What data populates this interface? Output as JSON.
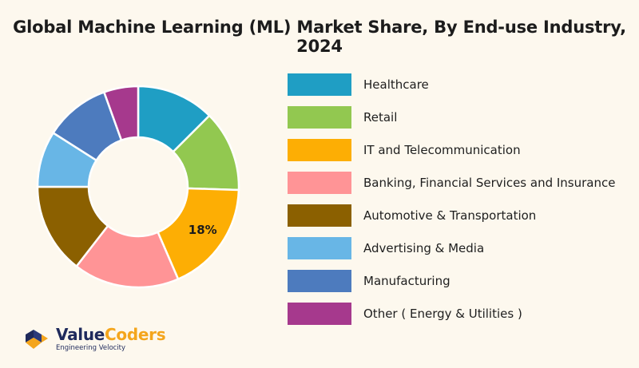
{
  "title": "Global Machine Learning (ML) Market Share, By End-use Industry, 2024",
  "chart_data": {
    "type": "pie",
    "variant": "donut",
    "title": "Global Machine Learning (ML) Market Share, By End-use Industry, 2024",
    "legend_position": "right",
    "slices": [
      {
        "label": "Healthcare",
        "value": 12.5,
        "color": "#1f9ec4",
        "data_label": ""
      },
      {
        "label": "Retail",
        "value": 13,
        "color": "#92c850",
        "data_label": ""
      },
      {
        "label": "IT and Telecommunication",
        "value": 18,
        "color": "#fdae04",
        "data_label": "18%"
      },
      {
        "label": "Banking, Financial Services and Insurance",
        "value": 17,
        "color": "#ff9496",
        "data_label": ""
      },
      {
        "label": "Automotive & Transportation",
        "value": 14.5,
        "color": "#8b6000",
        "data_label": ""
      },
      {
        "label": "Advertising & Media",
        "value": 9,
        "color": "#68b6e6",
        "data_label": ""
      },
      {
        "label": "Manufacturing",
        "value": 10.5,
        "color": "#4d7bbe",
        "data_label": ""
      },
      {
        "label": "Other ( Energy & Utilities )",
        "value": 5.5,
        "color": "#a6398d",
        "data_label": ""
      }
    ]
  },
  "logo": {
    "brand_part1": "Value",
    "brand_part2": "Coders",
    "tagline": "Engineering Velocity"
  }
}
